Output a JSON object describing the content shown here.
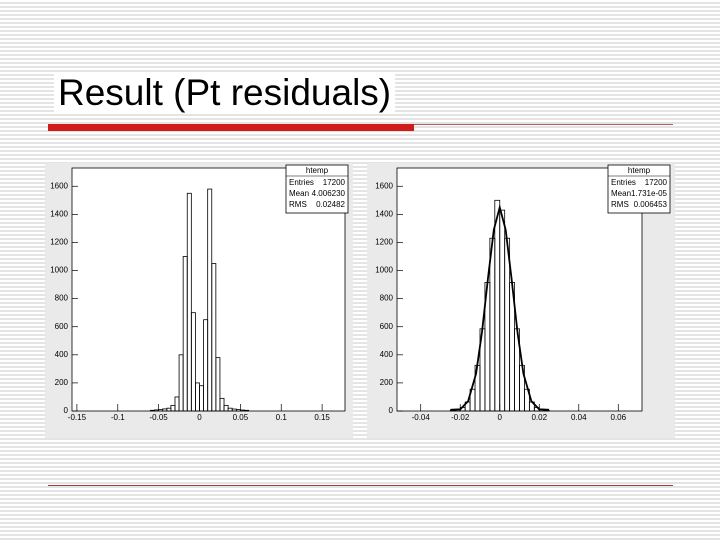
{
  "slide": {
    "title": "Result (Pt residuals)"
  },
  "chart_data": [
    {
      "type": "histogram",
      "bins": [
        -0.06,
        -0.055,
        -0.05,
        -0.045,
        -0.04,
        -0.035,
        -0.03,
        -0.025,
        -0.02,
        -0.015,
        -0.01,
        -0.005,
        0,
        0.005,
        0.01,
        0.015,
        0.02,
        0.025,
        0.03,
        0.035,
        0.04,
        0.045,
        0.05,
        0.055,
        0.06
      ],
      "values": [
        5,
        8,
        10,
        15,
        20,
        40,
        100,
        400,
        1100,
        1550,
        700,
        200,
        180,
        650,
        1580,
        1050,
        380,
        90,
        40,
        20,
        14,
        10,
        7,
        5
      ],
      "color": "#000000",
      "xlim": [
        -0.156,
        0.178
      ],
      "ylim": [
        0,
        1730
      ],
      "xticks": [
        -0.15,
        -0.1,
        -0.05,
        0,
        0.05,
        0.1,
        0.15
      ],
      "yticks": [
        0,
        200,
        400,
        600,
        800,
        1000,
        1200,
        1400,
        1600
      ],
      "stats": {
        "title": "htemp",
        "rows": [
          [
            "Entries",
            "17200"
          ],
          [
            "Mean",
            "4.006230"
          ],
          [
            "RMS",
            "0.02482"
          ]
        ]
      }
    },
    {
      "type": "histogram",
      "bins": [
        -0.025,
        -0.0225,
        -0.02,
        -0.0175,
        -0.015,
        -0.0125,
        -0.01,
        -0.0075,
        -0.005,
        -0.0025,
        0,
        0.0025,
        0.005,
        0.0075,
        0.01,
        0.0125,
        0.015,
        0.0175,
        0.02,
        0.0225,
        0.025
      ],
      "values": [
        5,
        10,
        25,
        64,
        155,
        325,
        585,
        915,
        1230,
        1500,
        1430,
        1230,
        915,
        585,
        325,
        155,
        64,
        25,
        10,
        5
      ],
      "color": "#000000",
      "fit": {
        "x": [
          -0.025,
          -0.02,
          -0.016,
          -0.012,
          -0.009,
          -0.006,
          -0.003,
          0,
          0.003,
          0.006,
          0.009,
          0.012,
          0.016,
          0.02,
          0.025
        ],
        "values": [
          9,
          12,
          70,
          265,
          560,
          940,
          1290,
          1450,
          1290,
          940,
          560,
          265,
          70,
          12,
          9
        ]
      },
      "xlim": [
        -0.052,
        0.072
      ],
      "ylim": [
        0,
        1730
      ],
      "xticks": [
        -0.04,
        -0.02,
        0,
        0.02,
        0.04,
        0.06
      ],
      "yticks": [
        0,
        200,
        400,
        600,
        800,
        1000,
        1200,
        1400,
        1600
      ],
      "stats": {
        "title": "htemp",
        "rows": [
          [
            "Entries",
            "17200"
          ],
          [
            "Mean",
            "1.731e-05"
          ],
          [
            "RMS",
            "0.006453"
          ]
        ]
      }
    }
  ]
}
